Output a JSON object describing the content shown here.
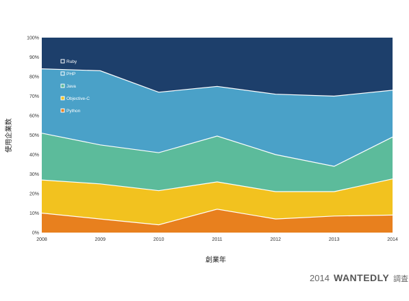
{
  "chart_data": {
    "type": "area",
    "stacked": true,
    "x": [
      "2008",
      "2009",
      "2010",
      "2011",
      "2012",
      "2013",
      "2014"
    ],
    "ylim": [
      0,
      100
    ],
    "yticks": [
      "0%",
      "10%",
      "20%",
      "30%",
      "40%",
      "50%",
      "60%",
      "70%",
      "80%",
      "90%",
      "100%"
    ],
    "xlabel": "創業年",
    "ylabel": "使用企業数",
    "grid": false,
    "legend_position": "top-left",
    "series": [
      {
        "name": "Python",
        "color": "#e8801e",
        "values": [
          10,
          7,
          4,
          12,
          7,
          8.5,
          9
        ]
      },
      {
        "name": "Objective-C",
        "color": "#f2c21f",
        "values": [
          17,
          18,
          17.5,
          14,
          14,
          12.5,
          18.5
        ]
      },
      {
        "name": "Java",
        "color": "#5cbb9b",
        "values": [
          24,
          20,
          19.5,
          23.5,
          19,
          13,
          21.5
        ]
      },
      {
        "name": "PHP",
        "color": "#4aa1c8",
        "values": [
          33,
          38,
          31,
          25.5,
          31,
          36,
          24
        ]
      },
      {
        "name": "Ruby",
        "color": "#1d3f6b",
        "values": [
          16,
          17,
          28,
          25,
          29,
          30,
          27
        ]
      }
    ],
    "legend_order": [
      "Ruby",
      "PHP",
      "Java",
      "Objective-C",
      "Python"
    ]
  },
  "footer": {
    "year": "2014",
    "brand": "WANTEDLY",
    "note": "調査"
  }
}
